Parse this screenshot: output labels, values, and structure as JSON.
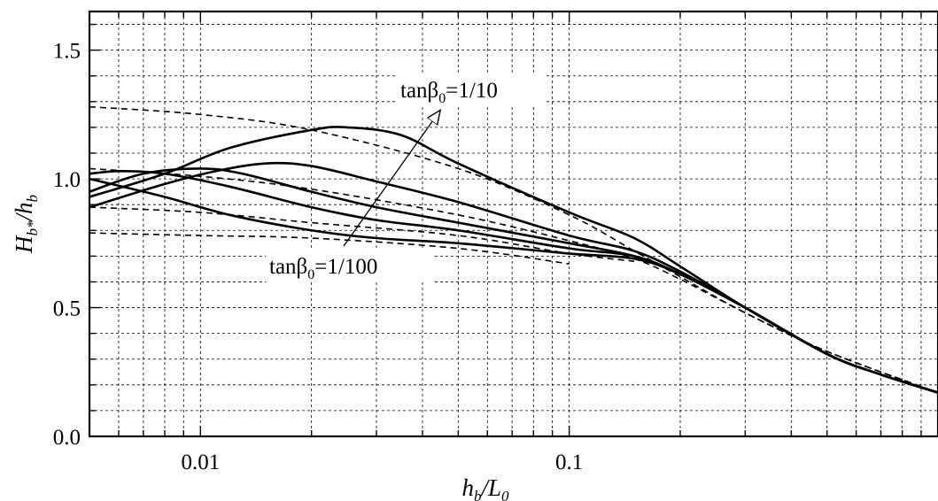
{
  "chart_data": {
    "type": "line",
    "xscale": "log",
    "xlim": [
      0.005,
      1.0
    ],
    "ylim": [
      0.0,
      1.65
    ],
    "xlabel_main": "h",
    "xlabel_sub": "b",
    "xlabel_rest": "/L",
    "xlabel_sub2": "0",
    "ylabel_main": "H",
    "ylabel_sub": "b*",
    "ylabel_rest": "/h",
    "ylabel_sub2": "b",
    "x_ticks": [
      {
        "value": 0.01,
        "label": "0.01"
      },
      {
        "value": 0.1,
        "label": "0.1"
      }
    ],
    "y_ticks": [
      {
        "value": 0.0,
        "label": "0.0"
      },
      {
        "value": 0.5,
        "label": "0.5"
      },
      {
        "value": 1.0,
        "label": "1.0"
      },
      {
        "value": 1.5,
        "label": "1.5"
      }
    ],
    "grid": true,
    "annotations": [
      {
        "pre": "tan",
        "greek": "β",
        "sub": "0",
        "post": "=1/10"
      },
      {
        "pre": "tan",
        "greek": "β",
        "sub": "0",
        "post": "=1/100"
      }
    ],
    "series": [
      {
        "style": "solid",
        "points": [
          [
            0.005,
            0.93
          ],
          [
            0.008,
            1.02
          ],
          [
            0.012,
            1.12
          ],
          [
            0.02,
            1.19
          ],
          [
            0.025,
            1.2
          ],
          [
            0.035,
            1.17
          ],
          [
            0.05,
            1.06
          ],
          [
            0.1,
            0.87
          ],
          [
            0.15,
            0.77
          ],
          [
            0.2,
            0.66
          ],
          [
            0.3,
            0.5
          ],
          [
            0.5,
            0.32
          ],
          [
            0.7,
            0.24
          ],
          [
            1.0,
            0.17
          ]
        ]
      },
      {
        "style": "solid",
        "points": [
          [
            0.005,
            0.89
          ],
          [
            0.008,
            0.98
          ],
          [
            0.011,
            1.03
          ],
          [
            0.015,
            1.06
          ],
          [
            0.02,
            1.05
          ],
          [
            0.03,
            0.99
          ],
          [
            0.05,
            0.91
          ],
          [
            0.1,
            0.78
          ],
          [
            0.15,
            0.72
          ],
          [
            0.2,
            0.64
          ],
          [
            0.3,
            0.5
          ],
          [
            0.5,
            0.32
          ],
          [
            0.7,
            0.24
          ],
          [
            1.0,
            0.17
          ]
        ]
      },
      {
        "style": "solid",
        "points": [
          [
            0.005,
            0.95
          ],
          [
            0.007,
            1.02
          ],
          [
            0.01,
            1.04
          ],
          [
            0.013,
            1.02
          ],
          [
            0.02,
            0.95
          ],
          [
            0.03,
            0.89
          ],
          [
            0.05,
            0.83
          ],
          [
            0.1,
            0.75
          ],
          [
            0.15,
            0.7
          ],
          [
            0.2,
            0.63
          ],
          [
            0.3,
            0.5
          ],
          [
            0.5,
            0.32
          ],
          [
            0.7,
            0.24
          ],
          [
            1.0,
            0.17
          ]
        ]
      },
      {
        "style": "solid",
        "points": [
          [
            0.005,
            1.02
          ],
          [
            0.006,
            1.03
          ],
          [
            0.008,
            1.02
          ],
          [
            0.012,
            0.97
          ],
          [
            0.02,
            0.89
          ],
          [
            0.03,
            0.84
          ],
          [
            0.05,
            0.8
          ],
          [
            0.1,
            0.73
          ],
          [
            0.15,
            0.7
          ],
          [
            0.2,
            0.63
          ],
          [
            0.3,
            0.5
          ],
          [
            0.5,
            0.32
          ],
          [
            0.7,
            0.24
          ],
          [
            1.0,
            0.17
          ]
        ]
      },
      {
        "style": "solid",
        "points": [
          [
            0.005,
            1.0
          ],
          [
            0.008,
            0.93
          ],
          [
            0.012,
            0.86
          ],
          [
            0.02,
            0.8
          ],
          [
            0.03,
            0.77
          ],
          [
            0.05,
            0.75
          ],
          [
            0.1,
            0.71
          ],
          [
            0.15,
            0.69
          ],
          [
            0.2,
            0.63
          ],
          [
            0.3,
            0.5
          ],
          [
            0.5,
            0.32
          ],
          [
            0.7,
            0.24
          ],
          [
            1.0,
            0.17
          ]
        ]
      },
      {
        "style": "dashed",
        "points": [
          [
            0.005,
            1.28
          ],
          [
            0.01,
            1.25
          ],
          [
            0.02,
            1.19
          ],
          [
            0.05,
            1.04
          ],
          [
            0.1,
            0.86
          ],
          [
            0.15,
            0.72
          ],
          [
            0.2,
            0.62
          ],
          [
            0.3,
            0.48
          ],
          [
            0.5,
            0.33
          ],
          [
            1.0,
            0.17
          ]
        ]
      },
      {
        "style": "dashed",
        "points": [
          [
            0.005,
            1.04
          ],
          [
            0.01,
            1.01
          ],
          [
            0.02,
            0.96
          ],
          [
            0.05,
            0.86
          ],
          [
            0.1,
            0.76
          ],
          [
            0.15,
            0.69
          ],
          [
            0.2,
            0.61
          ],
          [
            0.3,
            0.48
          ],
          [
            0.5,
            0.33
          ],
          [
            1.0,
            0.17
          ]
        ]
      },
      {
        "style": "dashed",
        "points": [
          [
            0.005,
            0.89
          ],
          [
            0.01,
            0.87
          ],
          [
            0.02,
            0.83
          ],
          [
            0.05,
            0.78
          ],
          [
            0.1,
            0.71
          ],
          [
            0.15,
            0.68
          ]
        ]
      },
      {
        "style": "dashed",
        "points": [
          [
            0.005,
            0.79
          ],
          [
            0.01,
            0.78
          ],
          [
            0.02,
            0.77
          ],
          [
            0.05,
            0.73
          ],
          [
            0.1,
            0.67
          ]
        ]
      }
    ]
  }
}
